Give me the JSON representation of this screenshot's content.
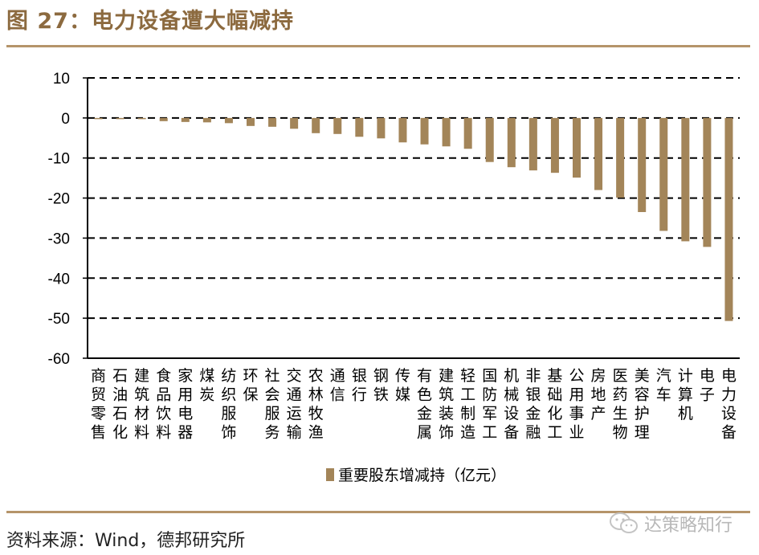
{
  "header": {
    "title": "图 27：电力设备遭大幅减持"
  },
  "footer": {
    "source": "资料来源：Wind，德邦研究所",
    "watermark": "达策略知行"
  },
  "icons": {
    "watermark_icon": "wechat-icon"
  },
  "colors": {
    "title": "#8c6a3f",
    "bar": "#a38559",
    "rule": "#b5946a",
    "grid": "#000000"
  },
  "chart_data": {
    "type": "bar",
    "categories": [
      "商贸零售",
      "石油石化",
      "建筑材料",
      "食品饮料",
      "家用电器",
      "煤炭",
      "纺织服饰",
      "环保",
      "社会服务",
      "交通运输",
      "农林牧渔",
      "通信",
      "银行",
      "钢铁",
      "传媒",
      "有色金属",
      "建筑装饰",
      "轻工制造",
      "国防军工",
      "机械设备",
      "非银金融",
      "基础化工",
      "公用事业",
      "房地产",
      "医药生物",
      "美容护理",
      "汽车",
      "计算机",
      "电子",
      "电力设备"
    ],
    "series": [
      {
        "name": "重要股东增减持（亿元）",
        "values": [
          -0.1,
          -0.2,
          -0.3,
          -0.8,
          -1.0,
          -1.1,
          -1.3,
          -2.0,
          -2.2,
          -2.7,
          -3.8,
          -4.0,
          -4.7,
          -5.1,
          -6.1,
          -6.6,
          -7.1,
          -7.7,
          -11.0,
          -12.3,
          -13.1,
          -13.7,
          -14.9,
          -18.0,
          -19.9,
          -23.5,
          -28.2,
          -30.8,
          -32.2,
          -50.7
        ]
      }
    ],
    "ylim": [
      -60,
      10
    ],
    "yticks": [
      10,
      0,
      -10,
      -20,
      -30,
      -40,
      -50,
      -60
    ],
    "grid": true,
    "legend": "bottom-center",
    "title": "",
    "xlabel": "",
    "ylabel": ""
  }
}
